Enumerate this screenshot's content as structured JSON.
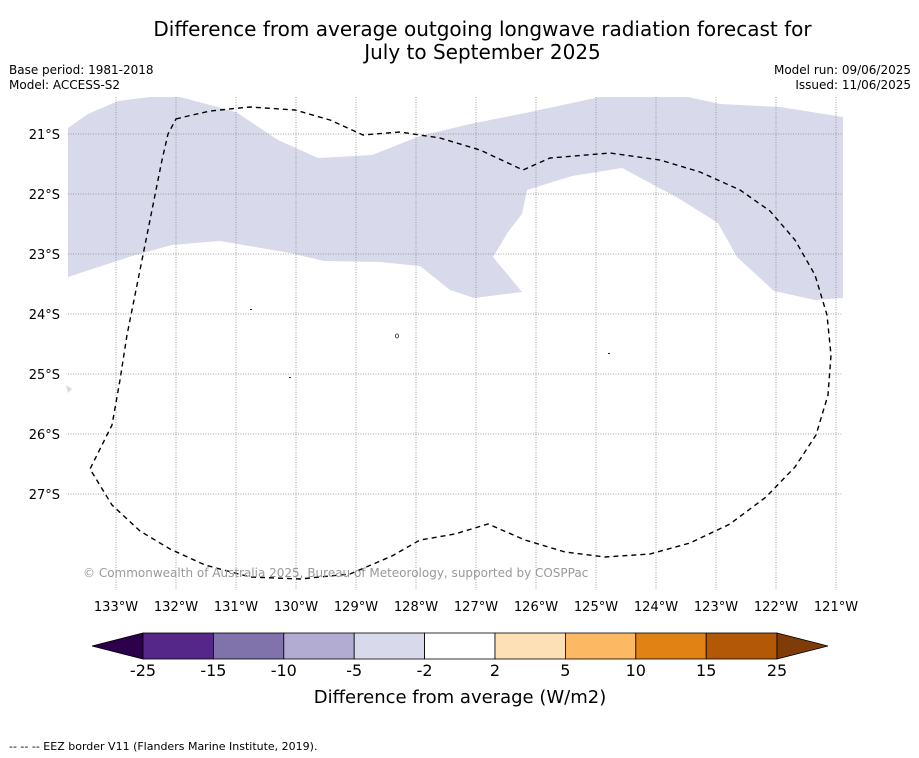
{
  "title": {
    "line1": "Difference from average outgoing longwave radiation forecast for",
    "line2": "July to September 2025"
  },
  "header": {
    "base_period": "Base period: 1981-2018",
    "model": "Model: ACCESS-S2",
    "model_run": "Model run: 09/06/2025",
    "issued": "Issued: 11/06/2025"
  },
  "map": {
    "lat_labels": [
      "21°S",
      "22°S",
      "23°S",
      "24°S",
      "25°S",
      "26°S",
      "27°S"
    ],
    "lon_labels": [
      "133°W",
      "132°W",
      "131°W",
      "130°W",
      "129°W",
      "128°W",
      "127°W",
      "126°W",
      "125°W",
      "124°W",
      "123°W",
      "122°W",
      "121°W"
    ],
    "copyright": "© Commonwealth of Australia 2025, Bureau of Meteorology, supported by COSPPac",
    "shaded_category": "-5 to -2",
    "shaded_color": "#d9d9e9",
    "eez_style": "dashed"
  },
  "colorbar": {
    "title": "Difference from average (W/m2)",
    "tick_labels": [
      "-25",
      "-15",
      "-10",
      "-5",
      "-2",
      "2",
      "5",
      "10",
      "15",
      "25"
    ],
    "colors": [
      "#2d004b",
      "#542788",
      "#8073ac",
      "#b2abd2",
      "#d8daeb",
      "#ffffff",
      "#fee0b6",
      "#fdb863",
      "#e08214",
      "#b35806",
      "#7f3b08"
    ]
  },
  "footnote": "--  --  -- EEZ border V11 (Flanders Marine Institute, 2019)."
}
